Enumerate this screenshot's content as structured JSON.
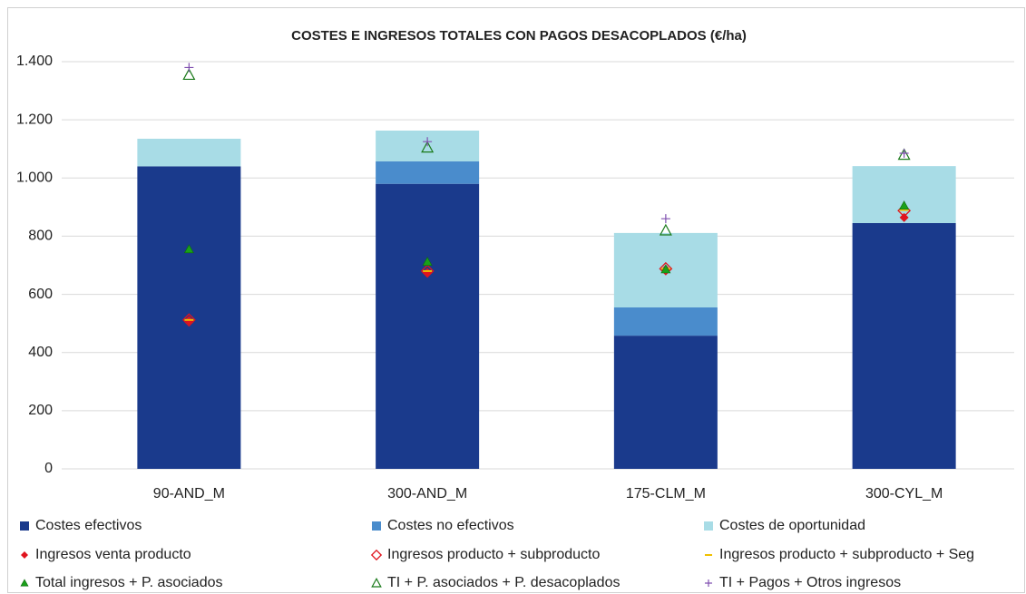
{
  "chart_data": {
    "type": "bar",
    "stacked": true,
    "title": "COSTES E INGRESOS TOTALES CON PAGOS DESACOPLADOS (€/ha)",
    "categories": [
      "90-AND_M",
      "300-AND_M",
      "175-CLM_M",
      "300-CYL_M"
    ],
    "series": [
      {
        "name": "Costes efectivos",
        "color": "#1a3a8c",
        "values": [
          1040,
          980,
          458,
          845
        ]
      },
      {
        "name": "Costes no efectivos",
        "color": "#4a8ccc",
        "values": [
          0,
          77,
          97,
          0
        ]
      },
      {
        "name": "Costes de oportunidad",
        "color": "#a8dce6",
        "values": [
          95,
          106,
          256,
          196
        ]
      }
    ],
    "markers": [
      {
        "name": "Ingresos venta producto",
        "color": "#e0141e",
        "marker": "diamond-filled",
        "values": [
          510,
          675,
          686,
          864
        ]
      },
      {
        "name": "Ingresos producto + subproducto",
        "color": "#e0141e",
        "marker": "diamond-open",
        "values": [
          512,
          680,
          688,
          888
        ]
      },
      {
        "name": "Ingresos producto + subproducto + Seg",
        "color": "#f0c000",
        "marker": "dash",
        "values": [
          512,
          680,
          688,
          890
        ]
      },
      {
        "name": "Total ingresos + P. asociados",
        "color": "#1aa01a",
        "marker": "triangle-filled",
        "values": [
          755,
          712,
          686,
          905
        ]
      },
      {
        "name": "TI + P. asociados + P. desacoplados",
        "color": "#1a7a1a",
        "marker": "triangle-open",
        "values": [
          1355,
          1105,
          820,
          1080
        ]
      },
      {
        "name": "TI + Pagos + Otros ingresos",
        "color": "#8050b0",
        "marker": "plus",
        "values": [
          1380,
          1125,
          860,
          1085
        ]
      }
    ],
    "ylim": [
      0,
      1400
    ],
    "yticks": [
      0,
      200,
      400,
      600,
      800,
      {
        "value": 1000,
        "label": "1.000"
      },
      {
        "value": 1200,
        "label": "1.200"
      },
      {
        "value": 1400,
        "label": "1.400"
      }
    ],
    "grid": true
  }
}
